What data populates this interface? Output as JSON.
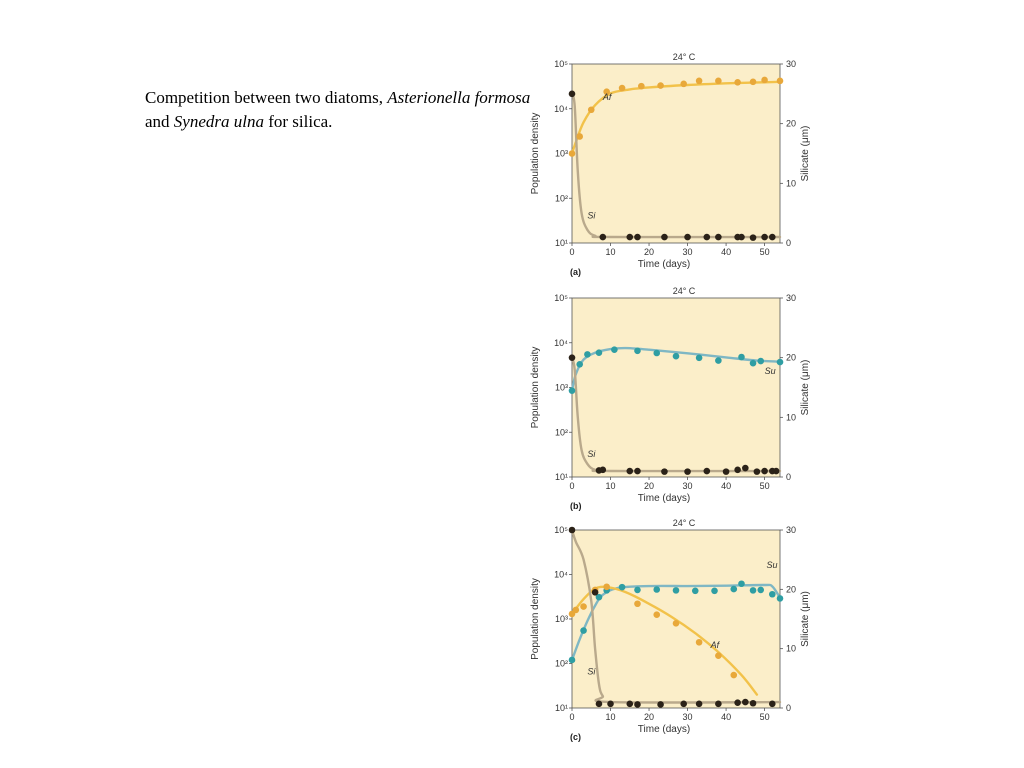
{
  "caption": {
    "prefix": "Competition between two diatoms, ",
    "species1": "Asterionella formosa",
    "and": " and ",
    "species2": "Synedra ulna",
    "suffix": " for silica."
  },
  "colors": {
    "background": "#fbeec9",
    "af": "#e8a83a",
    "af_line": "#f2c24a",
    "su": "#2f9ea3",
    "su_line": "#7fb7c4",
    "si": "#2b2218",
    "si_line": "#b9a98c"
  },
  "chart_data": [
    {
      "type": "line",
      "panel": "(a)",
      "title": "24° C",
      "xlabel": "Time (days)",
      "ylabel": "Population density",
      "y2label": "Silicate (μm)",
      "xlim": [
        0,
        54
      ],
      "xticks": [
        0,
        10,
        20,
        30,
        40,
        50
      ],
      "ylim_log10": [
        1,
        5
      ],
      "yticks": [
        "10¹",
        "10²",
        "10³",
        "10⁴",
        "10⁵"
      ],
      "y2lim": [
        0,
        30
      ],
      "y2ticks": [
        0,
        10,
        20,
        30
      ],
      "series": [
        {
          "name": "Af",
          "axis": "left",
          "points": [
            [
              0,
              1000
            ],
            [
              2,
              2400
            ],
            [
              5,
              9500
            ],
            [
              9,
              24000
            ],
            [
              13,
              29000
            ],
            [
              18,
              32000
            ],
            [
              23,
              33000
            ],
            [
              29,
              36000
            ],
            [
              33,
              42000
            ],
            [
              38,
              42000
            ],
            [
              43,
              39000
            ],
            [
              47,
              40000
            ],
            [
              50,
              44000
            ],
            [
              54,
              42000
            ]
          ],
          "curve": [
            [
              0,
              1000
            ],
            [
              1,
              1800
            ],
            [
              3,
              5000
            ],
            [
              6,
              12000
            ],
            [
              10,
              22000
            ],
            [
              15,
              27000
            ],
            [
              20,
              30000
            ],
            [
              30,
              34000
            ],
            [
              40,
              37000
            ],
            [
              50,
              39000
            ],
            [
              54,
              40000
            ]
          ]
        },
        {
          "name": "Si",
          "axis": "right",
          "points": [
            [
              0,
              25
            ],
            [
              8,
              1.0
            ],
            [
              15,
              1.0
            ],
            [
              17,
              1.0
            ],
            [
              24,
              1.0
            ],
            [
              30,
              1.0
            ],
            [
              35,
              1.0
            ],
            [
              38,
              1.0
            ],
            [
              43,
              1.0
            ],
            [
              44,
              1.0
            ],
            [
              47,
              0.9
            ],
            [
              50,
              1.0
            ],
            [
              52,
              1.0
            ]
          ],
          "curve": [
            [
              0,
              25
            ],
            [
              0.7,
              23
            ],
            [
              1.5,
              12
            ],
            [
              2.5,
              5
            ],
            [
              4,
              2.2
            ],
            [
              6,
              1.2
            ],
            [
              10,
              1.0
            ],
            [
              54,
              1.0
            ]
          ]
        }
      ],
      "series_labels": [
        {
          "text": "Af",
          "x": 8,
          "y_log": 4.2
        },
        {
          "text": "Si",
          "x": 4,
          "y_log": 1.55
        }
      ]
    },
    {
      "type": "line",
      "panel": "(b)",
      "title": "24° C",
      "xlabel": "Time (days)",
      "ylabel": "Population density",
      "y2label": "Silicate (μm)",
      "xlim": [
        0,
        54
      ],
      "xticks": [
        0,
        10,
        20,
        30,
        40,
        50
      ],
      "ylim_log10": [
        1,
        5
      ],
      "yticks": [
        "10¹",
        "10²",
        "10³",
        "10⁴",
        "10⁵"
      ],
      "y2lim": [
        0,
        30
      ],
      "y2ticks": [
        0,
        10,
        20,
        30
      ],
      "series": [
        {
          "name": "Su",
          "axis": "left",
          "points": [
            [
              0,
              850
            ],
            [
              2,
              3300
            ],
            [
              4,
              5500
            ],
            [
              7,
              6000
            ],
            [
              11,
              7000
            ],
            [
              17,
              6600
            ],
            [
              22,
              5900
            ],
            [
              27,
              5000
            ],
            [
              33,
              4600
            ],
            [
              38,
              4000
            ],
            [
              44,
              4800
            ],
            [
              47,
              3500
            ],
            [
              49,
              3900
            ],
            [
              54,
              3700
            ]
          ],
          "curve": [
            [
              0,
              850
            ],
            [
              1,
              2000
            ],
            [
              3,
              4200
            ],
            [
              6,
              6000
            ],
            [
              10,
              7200
            ],
            [
              14,
              7600
            ],
            [
              20,
              7000
            ],
            [
              30,
              5800
            ],
            [
              40,
              4700
            ],
            [
              48,
              4000
            ],
            [
              54,
              3800
            ]
          ]
        },
        {
          "name": "Si",
          "axis": "right",
          "points": [
            [
              0,
              20
            ],
            [
              7,
              1.1
            ],
            [
              8,
              1.2
            ],
            [
              15,
              1.0
            ],
            [
              17,
              1.0
            ],
            [
              24,
              0.9
            ],
            [
              30,
              0.9
            ],
            [
              35,
              1.0
            ],
            [
              40,
              0.9
            ],
            [
              43,
              1.2
            ],
            [
              45,
              1.5
            ],
            [
              48,
              0.9
            ],
            [
              50,
              1.0
            ],
            [
              52,
              1.0
            ],
            [
              53,
              1.0
            ]
          ],
          "curve": [
            [
              0,
              20
            ],
            [
              0.7,
              18
            ],
            [
              1.5,
              10
            ],
            [
              2.5,
              4.5
            ],
            [
              4,
              2.2
            ],
            [
              6,
              1.2
            ],
            [
              10,
              1.0
            ],
            [
              54,
              1.0
            ]
          ]
        }
      ],
      "series_labels": [
        {
          "text": "Su",
          "x": 50,
          "y_log": 3.3
        },
        {
          "text": "Si",
          "x": 4,
          "y_log": 1.45
        }
      ]
    },
    {
      "type": "line",
      "panel": "(c)",
      "title": "24° C",
      "xlabel": "Time (days)",
      "ylabel": "Population density",
      "y2label": "Silicate (μm)",
      "xlim": [
        0,
        54
      ],
      "xticks": [
        0,
        10,
        20,
        30,
        40,
        50
      ],
      "ylim_log10": [
        1,
        5
      ],
      "yticks": [
        "10¹",
        "10²",
        "10³",
        "10⁴",
        "10⁵"
      ],
      "y2lim": [
        0,
        30
      ],
      "y2ticks": [
        0,
        10,
        20,
        30
      ],
      "series": [
        {
          "name": "Su",
          "axis": "left",
          "points": [
            [
              0,
              120
            ],
            [
              3,
              550
            ],
            [
              7,
              3100
            ],
            [
              9,
              4400
            ],
            [
              13,
              5200
            ],
            [
              17,
              4500
            ],
            [
              22,
              4600
            ],
            [
              27,
              4400
            ],
            [
              32,
              4300
            ],
            [
              37,
              4300
            ],
            [
              42,
              4700
            ],
            [
              44,
              6200
            ],
            [
              47,
              4400
            ],
            [
              49,
              4500
            ],
            [
              52,
              3600
            ],
            [
              54,
              2900
            ]
          ],
          "curve": [
            [
              0,
              120
            ],
            [
              2,
              350
            ],
            [
              4,
              900
            ],
            [
              6,
              2000
            ],
            [
              8,
              3500
            ],
            [
              12,
              5000
            ],
            [
              20,
              5500
            ],
            [
              30,
              5500
            ],
            [
              40,
              5600
            ],
            [
              50,
              5800
            ],
            [
              52,
              5400
            ],
            [
              54,
              3000
            ]
          ]
        },
        {
          "name": "Af",
          "axis": "left",
          "points": [
            [
              0,
              1300
            ],
            [
              1,
              1600
            ],
            [
              3,
              1900
            ],
            [
              6,
              4500
            ],
            [
              9,
              5300
            ],
            [
              17,
              2200
            ],
            [
              22,
              1250
            ],
            [
              27,
              800
            ],
            [
              33,
              300
            ],
            [
              38,
              150
            ],
            [
              42,
              55
            ]
          ],
          "curve": [
            [
              0,
              1300
            ],
            [
              3,
              2800
            ],
            [
              6,
              4800
            ],
            [
              9,
              5200
            ],
            [
              14,
              4000
            ],
            [
              20,
              2200
            ],
            [
              26,
              1100
            ],
            [
              32,
              480
            ],
            [
              38,
              180
            ],
            [
              44,
              55
            ],
            [
              48,
              20
            ]
          ]
        },
        {
          "name": "Si",
          "axis": "right",
          "points": [
            [
              0,
              30
            ],
            [
              6,
              19.5
            ],
            [
              7,
              0.7
            ],
            [
              10,
              0.7
            ],
            [
              15,
              0.7
            ],
            [
              17,
              0.6
            ],
            [
              23,
              0.6
            ],
            [
              29,
              0.7
            ],
            [
              33,
              0.7
            ],
            [
              38,
              0.7
            ],
            [
              43,
              0.9
            ],
            [
              45,
              1.0
            ],
            [
              47,
              0.8
            ],
            [
              52,
              0.7
            ]
          ],
          "curve": [
            [
              0,
              30
            ],
            [
              1,
              28
            ],
            [
              3,
              25
            ],
            [
              5,
              18
            ],
            [
              6,
              10
            ],
            [
              7,
              4
            ],
            [
              8,
              2
            ],
            [
              10,
              1.0
            ],
            [
              54,
              1.0
            ]
          ]
        }
      ],
      "series_labels": [
        {
          "text": "Su",
          "x": 50.5,
          "y_log": 4.15
        },
        {
          "text": "Af",
          "x": 36,
          "y_log": 2.35
        },
        {
          "text": "Si",
          "x": 4,
          "y_log": 1.75
        }
      ]
    }
  ]
}
